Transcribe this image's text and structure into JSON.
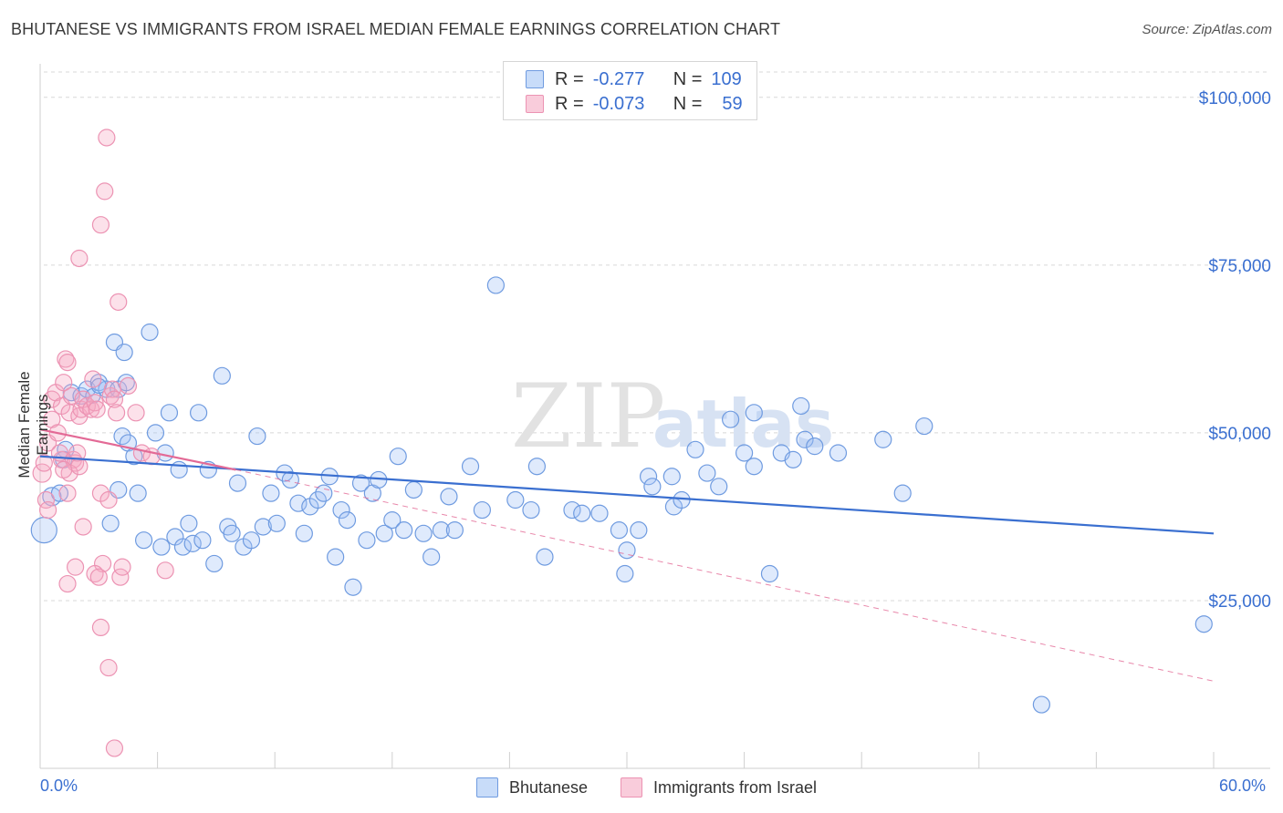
{
  "title": "BHUTANESE VS IMMIGRANTS FROM ISRAEL MEDIAN FEMALE EARNINGS CORRELATION CHART",
  "source": "Source: ZipAtlas.com",
  "watermark": {
    "zip": "ZIP",
    "atlas": "atlas"
  },
  "colors": {
    "blue": "#3a6fd0",
    "blue_fill": "rgba(164,196,245,0.35)",
    "blue_stroke": "#6f9be0",
    "pink": "#e36a96",
    "pink_fill": "rgba(245,170,195,0.35)",
    "pink_stroke": "#ec93b3",
    "grid": "#d8d8d8"
  },
  "legend": {
    "row1": {
      "r_label": "R =",
      "r_value": "-0.277",
      "n_label": "N =",
      "n_value": "109"
    },
    "row2": {
      "r_label": "R =",
      "r_value": "-0.073",
      "n_label": "N =",
      "n_value": "59"
    }
  },
  "bottom_legend": {
    "blue": "Bhutanese",
    "pink": "Immigrants from Israel"
  },
  "chart_data": {
    "type": "scatter",
    "xlabel": "",
    "ylabel": "Median Female Earnings",
    "xlim": [
      0,
      60
    ],
    "ylim": [
      0,
      105000
    ],
    "x_tick_labels": [
      "0.0%",
      "60.0%"
    ],
    "y_ticks": [
      25000,
      50000,
      75000,
      100000
    ],
    "y_tick_labels": [
      "$25,000",
      "$50,000",
      "$75,000",
      "$100,000"
    ],
    "series": [
      {
        "name": "Bhutanese",
        "color": "#3a6fd0",
        "trend": {
          "x": [
            0,
            60
          ],
          "y": [
            46500,
            35000
          ]
        },
        "points": [
          [
            0.2,
            35500,
            14
          ],
          [
            0.6,
            40500,
            10
          ],
          [
            1.0,
            41000,
            9
          ],
          [
            1.3,
            47500,
            9
          ],
          [
            1.2,
            46000,
            9
          ],
          [
            1.6,
            56000,
            9
          ],
          [
            2.1,
            55500,
            9
          ],
          [
            2.4,
            56500,
            9
          ],
          [
            2.7,
            55500,
            8
          ],
          [
            3.0,
            57500,
            9
          ],
          [
            3.4,
            56500,
            9
          ],
          [
            3.0,
            57000,
            8
          ],
          [
            3.8,
            63500,
            9
          ],
          [
            4.0,
            56500,
            9
          ],
          [
            4.4,
            57500,
            9
          ],
          [
            4.3,
            62000,
            9
          ],
          [
            4.2,
            49500,
            9
          ],
          [
            4.5,
            48500,
            9
          ],
          [
            4.0,
            41500,
            9
          ],
          [
            3.6,
            36500,
            9
          ],
          [
            4.8,
            46500,
            9
          ],
          [
            5.0,
            41000,
            9
          ],
          [
            5.3,
            34000,
            9
          ],
          [
            5.6,
            65000,
            9
          ],
          [
            5.9,
            50000,
            9
          ],
          [
            6.2,
            33000,
            9
          ],
          [
            6.4,
            47000,
            9
          ],
          [
            6.6,
            53000,
            9
          ],
          [
            6.9,
            34500,
            9
          ],
          [
            7.1,
            44500,
            9
          ],
          [
            7.3,
            33000,
            9
          ],
          [
            7.6,
            36500,
            9
          ],
          [
            7.8,
            33500,
            9
          ],
          [
            8.1,
            53000,
            9
          ],
          [
            8.3,
            34000,
            9
          ],
          [
            8.6,
            44500,
            9
          ],
          [
            8.9,
            30500,
            9
          ],
          [
            9.3,
            58500,
            9
          ],
          [
            9.6,
            36000,
            9
          ],
          [
            9.8,
            35000,
            9
          ],
          [
            10.1,
            42500,
            9
          ],
          [
            10.4,
            33000,
            9
          ],
          [
            10.8,
            34000,
            9
          ],
          [
            11.1,
            49500,
            9
          ],
          [
            11.4,
            36000,
            9
          ],
          [
            11.8,
            41000,
            9
          ],
          [
            12.1,
            36500,
            9
          ],
          [
            12.5,
            44000,
            9
          ],
          [
            12.8,
            43000,
            9
          ],
          [
            13.2,
            39500,
            9
          ],
          [
            13.5,
            35000,
            9
          ],
          [
            13.8,
            39000,
            9
          ],
          [
            14.2,
            40000,
            9
          ],
          [
            14.5,
            41000,
            9
          ],
          [
            14.8,
            43500,
            9
          ],
          [
            15.1,
            31500,
            9
          ],
          [
            15.4,
            38500,
            9
          ],
          [
            15.7,
            37000,
            9
          ],
          [
            16.0,
            27000,
            9
          ],
          [
            16.4,
            42500,
            9
          ],
          [
            16.7,
            34000,
            9
          ],
          [
            17.0,
            41000,
            9
          ],
          [
            17.3,
            43000,
            9
          ],
          [
            17.6,
            35000,
            9
          ],
          [
            18.0,
            37000,
            9
          ],
          [
            18.3,
            46500,
            9
          ],
          [
            18.6,
            35500,
            9
          ],
          [
            19.1,
            41500,
            9
          ],
          [
            19.6,
            35000,
            9
          ],
          [
            20.0,
            31500,
            9
          ],
          [
            20.5,
            35500,
            9
          ],
          [
            20.9,
            40500,
            9
          ],
          [
            21.2,
            35500,
            9
          ],
          [
            22.0,
            45000,
            9
          ],
          [
            22.6,
            38500,
            9
          ],
          [
            23.3,
            72000,
            9
          ],
          [
            24.3,
            40000,
            9
          ],
          [
            25.1,
            38500,
            9
          ],
          [
            25.4,
            45000,
            9
          ],
          [
            25.8,
            31500,
            9
          ],
          [
            27.2,
            38500,
            9
          ],
          [
            27.7,
            38000,
            9
          ],
          [
            28.6,
            38000,
            9
          ],
          [
            29.6,
            35500,
            9
          ],
          [
            29.9,
            29000,
            9
          ],
          [
            30.0,
            32500,
            9
          ],
          [
            30.6,
            35500,
            9
          ],
          [
            31.1,
            43500,
            9
          ],
          [
            31.3,
            42000,
            9
          ],
          [
            32.3,
            43500,
            9
          ],
          [
            32.4,
            39000,
            9
          ],
          [
            32.8,
            40000,
            9
          ],
          [
            33.5,
            47500,
            9
          ],
          [
            34.1,
            44000,
            9
          ],
          [
            34.7,
            42000,
            9
          ],
          [
            35.3,
            52000,
            9
          ],
          [
            36.0,
            47000,
            9
          ],
          [
            36.5,
            53000,
            9
          ],
          [
            36.5,
            45000,
            9
          ],
          [
            37.3,
            29000,
            9
          ],
          [
            37.9,
            47000,
            9
          ],
          [
            38.5,
            46000,
            9
          ],
          [
            38.9,
            54000,
            9
          ],
          [
            39.1,
            49000,
            9
          ],
          [
            39.6,
            48000,
            9
          ],
          [
            40.8,
            47000,
            9
          ],
          [
            43.1,
            49000,
            9
          ],
          [
            44.1,
            41000,
            9
          ],
          [
            45.2,
            51000,
            9
          ],
          [
            51.2,
            9500,
            9
          ],
          [
            59.5,
            21500,
            9
          ]
        ]
      },
      {
        "name": "Immigrants from Israel",
        "color": "#e36a96",
        "trend": {
          "x": [
            0,
            10
          ],
          "y": [
            50500,
            44500
          ]
        },
        "trend_ext": {
          "x": [
            10,
            60
          ],
          "y": [
            44500,
            13000
          ]
        },
        "points": [
          [
            0.1,
            44000,
            10
          ],
          [
            0.2,
            45500,
            9
          ],
          [
            0.3,
            40000,
            9
          ],
          [
            0.4,
            48500,
            9
          ],
          [
            0.4,
            38500,
            9
          ],
          [
            0.6,
            55000,
            9
          ],
          [
            0.6,
            52000,
            9
          ],
          [
            0.8,
            56000,
            9
          ],
          [
            0.9,
            50000,
            9
          ],
          [
            1.1,
            54000,
            9
          ],
          [
            1.1,
            46000,
            9
          ],
          [
            1.0,
            47000,
            9
          ],
          [
            1.2,
            57500,
            9
          ],
          [
            1.3,
            61000,
            9
          ],
          [
            1.4,
            60500,
            9
          ],
          [
            1.5,
            53000,
            9
          ],
          [
            1.6,
            55500,
            9
          ],
          [
            1.7,
            46000,
            9
          ],
          [
            1.8,
            45500,
            9
          ],
          [
            1.5,
            44000,
            9
          ],
          [
            1.4,
            27500,
            9
          ],
          [
            1.9,
            47000,
            9
          ],
          [
            2.0,
            52500,
            9
          ],
          [
            2.1,
            53500,
            9
          ],
          [
            2.2,
            55000,
            9
          ],
          [
            2.4,
            54000,
            9
          ],
          [
            2.6,
            53500,
            9
          ],
          [
            2.7,
            58000,
            9
          ],
          [
            2.8,
            54500,
            9
          ],
          [
            2.9,
            53500,
            9
          ],
          [
            3.1,
            41000,
            9
          ],
          [
            3.2,
            30500,
            9
          ],
          [
            3.3,
            86000,
            9
          ],
          [
            3.4,
            94000,
            9
          ],
          [
            3.5,
            40000,
            9
          ],
          [
            3.6,
            55500,
            9
          ],
          [
            3.7,
            56500,
            9
          ],
          [
            3.8,
            55000,
            9
          ],
          [
            3.9,
            53000,
            9
          ],
          [
            4.0,
            69500,
            9
          ],
          [
            4.1,
            28500,
            9
          ],
          [
            4.2,
            30000,
            9
          ],
          [
            3.1,
            81000,
            9
          ],
          [
            2.0,
            76000,
            9
          ],
          [
            2.2,
            36000,
            9
          ],
          [
            2.8,
            29000,
            9
          ],
          [
            3.0,
            28500,
            9
          ],
          [
            3.1,
            21000,
            9
          ],
          [
            3.5,
            15000,
            9
          ],
          [
            3.8,
            3000,
            9
          ],
          [
            5.2,
            47000,
            9
          ],
          [
            5.7,
            46500,
            9
          ],
          [
            6.4,
            29500,
            9
          ],
          [
            1.8,
            30000,
            9
          ],
          [
            1.4,
            41000,
            9
          ],
          [
            1.2,
            44500,
            9
          ],
          [
            2.0,
            45000,
            9
          ],
          [
            4.5,
            57000,
            9
          ],
          [
            4.9,
            53000,
            9
          ]
        ]
      }
    ]
  }
}
